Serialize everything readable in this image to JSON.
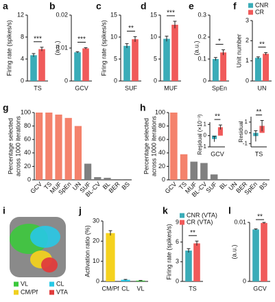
{
  "chart_data": [
    {
      "type": "grouped_bar",
      "panel": "a",
      "ylabel": "Firing rate (spikes/s)",
      "categories": [
        "TS"
      ],
      "series": [
        {
          "color": "#3aacb8",
          "values": [
            4.7
          ],
          "errors": [
            0.3
          ]
        },
        {
          "color": "#f05a5a",
          "values": [
            5.8
          ],
          "errors": [
            0.35
          ]
        }
      ],
      "ylim": [
        0,
        12
      ],
      "yticks": [
        0,
        4,
        8,
        12
      ],
      "significance": "***"
    },
    {
      "type": "grouped_bar",
      "panel": "b",
      "ylabel": "(a.u.)",
      "categories": [
        "GCV"
      ],
      "series": [
        {
          "color": "#3aacb8",
          "values": [
            0.0087
          ],
          "errors": [
            0.0002
          ]
        },
        {
          "color": "#f05a5a",
          "values": [
            0.0099
          ],
          "errors": [
            0.0002
          ]
        }
      ],
      "ylim": [
        0,
        0.02
      ],
      "yticks": [
        0,
        0.01,
        0.02
      ],
      "significance": "***"
    },
    {
      "type": "grouped_bar",
      "panel": "c",
      "ylabel": "Firing rate (spikes/s)",
      "categories": [
        "SUF"
      ],
      "series": [
        {
          "color": "#3aacb8",
          "values": [
            8.0
          ],
          "errors": [
            0.5
          ]
        },
        {
          "color": "#f05a5a",
          "values": [
            9.5
          ],
          "errors": [
            0.6
          ]
        }
      ],
      "ylim": [
        0,
        15
      ],
      "yticks": [
        0,
        5,
        10,
        15
      ],
      "significance": "**"
    },
    {
      "type": "grouped_bar",
      "panel": "d",
      "categories": [
        "MUF"
      ],
      "series": [
        {
          "color": "#3aacb8",
          "values": [
            9.6
          ],
          "errors": [
            0.6
          ]
        },
        {
          "color": "#f05a5a",
          "values": [
            12.8
          ],
          "errors": [
            0.8
          ]
        }
      ],
      "ylim": [
        0,
        15
      ],
      "yticks": [
        0,
        5,
        10,
        15
      ],
      "significance": "***"
    },
    {
      "type": "grouped_bar",
      "panel": "e",
      "ylabel": "(a.u.)",
      "categories": [
        "SpEn"
      ],
      "series": [
        {
          "color": "#3aacb8",
          "values": [
            0.1
          ],
          "errors": [
            0.007
          ]
        },
        {
          "color": "#f05a5a",
          "values": [
            0.13
          ],
          "errors": [
            0.012
          ]
        }
      ],
      "ylim": [
        0,
        0.3
      ],
      "yticks": [
        0,
        0.1,
        0.2,
        0.3
      ],
      "significance": "*"
    },
    {
      "type": "grouped_bar",
      "panel": "f",
      "ylabel": "Unit number",
      "categories": [
        "UN"
      ],
      "series": [
        {
          "name": "CNR",
          "color": "#3aacb8",
          "values": [
            1.15
          ],
          "errors": [
            0.05
          ]
        },
        {
          "name": "CR",
          "color": "#f05a5a",
          "values": [
            1.35
          ],
          "errors": [
            0.06
          ]
        }
      ],
      "ylim": [
        0,
        3
      ],
      "yticks": [
        0,
        1,
        2,
        3
      ],
      "significance": "**"
    },
    {
      "type": "bar",
      "panel": "g",
      "ylabel": [
        "Percentage selected",
        "across 1000 iterations"
      ],
      "categories": [
        "GCV",
        "TS",
        "MUF",
        "SpEn",
        "UN",
        "SUF",
        "BL-CV",
        "BL",
        "BER",
        "BS"
      ],
      "values": [
        100,
        100,
        97,
        92,
        80,
        24,
        4,
        3,
        1,
        1
      ],
      "colors": [
        "#f4826c",
        "#f4826c",
        "#f4826c",
        "#f4826c",
        "#f4826c",
        "#808080",
        "#808080",
        "#808080",
        "#808080",
        "#808080"
      ],
      "ylim": [
        0,
        100
      ],
      "yticks": [
        0,
        20,
        40,
        60,
        80,
        100
      ]
    },
    {
      "type": "bar",
      "panel": "h",
      "ylabel": [
        "Percentage selected",
        "across 1000 iterations"
      ],
      "categories": [
        "GCV",
        "TS",
        "MUF",
        "BL-CV",
        "SUF",
        "BL",
        "UN",
        "BER",
        "SpEn",
        "BS"
      ],
      "values": [
        100,
        38,
        27,
        25,
        8,
        1,
        0,
        0,
        0,
        0
      ],
      "colors": [
        "#f4826c",
        "#f4826c",
        "#808080",
        "#808080",
        "#808080",
        "#808080",
        "#808080",
        "#808080",
        "#808080",
        "#808080"
      ],
      "ylim": [
        0,
        100
      ],
      "yticks": [
        0,
        20,
        40,
        60,
        80,
        100
      ]
    },
    {
      "type": "grouped_bar",
      "ylabel": "Residual (×10⁻³)",
      "categories": [
        "GCV"
      ],
      "series": [
        {
          "color": "#3aacb8",
          "values": [
            -0.3
          ],
          "errors": [
            0.25
          ]
        },
        {
          "color": "#f05a5a",
          "values": [
            0.75
          ],
          "errors": [
            0.2
          ]
        }
      ],
      "ylim": [
        -1,
        1.2
      ],
      "yticks": [
        -1,
        0,
        1
      ],
      "significance": "**"
    },
    {
      "type": "grouped_bar",
      "ylabel": "Residual",
      "categories": [
        "TS"
      ],
      "series": [
        {
          "color": "#3aacb8",
          "values": [
            -0.3
          ],
          "errors": [
            0.5
          ]
        },
        {
          "color": "#f05a5a",
          "values": [
            0.65
          ],
          "errors": [
            0.5
          ]
        }
      ],
      "ylim": [
        -1.3,
        1.5
      ],
      "yticks": [
        -1,
        0,
        1
      ],
      "significance": "**"
    },
    {
      "type": "image",
      "panel": "i",
      "legend": [
        {
          "name": "VL",
          "color": "#3cc83c"
        },
        {
          "name": "CL",
          "color": "#28c8e6"
        },
        {
          "name": "CM/Pf",
          "color": "#f0d020"
        },
        {
          "name": "VTA",
          "color": "#e03c3c"
        }
      ]
    },
    {
      "type": "bar",
      "panel": "j",
      "ylabel": "Activation ratio (%)",
      "categories": [
        "CM/Pf",
        "CL",
        "VL"
      ],
      "values": [
        24,
        0.8,
        0.4
      ],
      "errors": [
        1.2,
        0.2,
        0.1
      ],
      "colors": [
        "#f5d21e",
        "#28c8e6",
        "#3cc83c"
      ],
      "ylim": [
        0,
        30
      ],
      "yticks": [
        0,
        10,
        20,
        30
      ]
    },
    {
      "type": "grouped_bar",
      "panel": "k",
      "ylabel": "Firing rate (spikes/s)",
      "categories": [
        "TS"
      ],
      "series": [
        {
          "name": "CNR (VTA)",
          "color": "#3aacb8",
          "values": [
            4.7
          ],
          "errors": [
            0.3
          ]
        },
        {
          "name": "CR (VTA)",
          "color": "#f05a5a",
          "values": [
            5.8
          ],
          "errors": [
            0.35
          ]
        }
      ],
      "ylim": [
        0,
        9
      ],
      "yticks": [
        0,
        3,
        6,
        9
      ],
      "significance": "**"
    },
    {
      "type": "grouped_bar",
      "panel": "l",
      "ylabel": "(a.u.)",
      "categories": [
        "GCV"
      ],
      "series": [
        {
          "color": "#3aacb8",
          "values": [
            0.0088
          ],
          "errors": [
            0.0001
          ]
        },
        {
          "color": "#f05a5a",
          "values": [
            0.0099
          ],
          "errors": [
            0.0001
          ]
        }
      ],
      "ylim": [
        0,
        0.01
      ],
      "yticks": [
        0,
        0.01
      ],
      "significance": "**"
    }
  ]
}
